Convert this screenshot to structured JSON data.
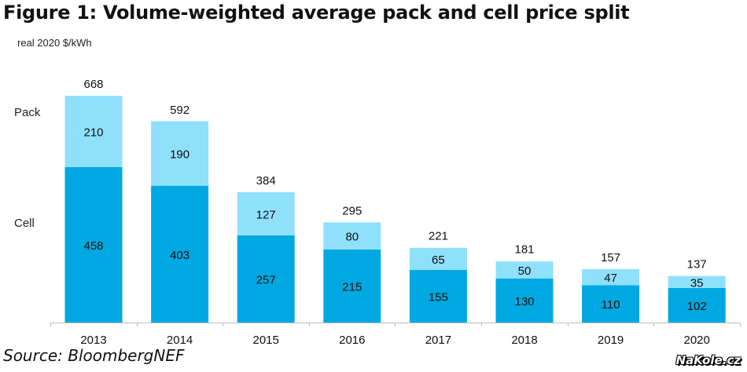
{
  "chart_data": {
    "type": "bar",
    "stacked": true,
    "title": "Figure 1: Volume-weighted average pack and cell price split",
    "ylabel": "real 2020 $/kWh",
    "xlabel": "",
    "categories": [
      "2013",
      "2014",
      "2015",
      "2016",
      "2017",
      "2018",
      "2019",
      "2020"
    ],
    "series": [
      {
        "name": "Cell",
        "color": "#00a8e1",
        "values": [
          458,
          403,
          257,
          215,
          155,
          130,
          110,
          102
        ]
      },
      {
        "name": "Pack",
        "color": "#8fe0fb",
        "values": [
          210,
          190,
          127,
          80,
          65,
          50,
          47,
          35
        ]
      }
    ],
    "totals": [
      668,
      592,
      384,
      295,
      221,
      181,
      157,
      137
    ],
    "ylim": [
      0,
      668
    ],
    "grid": false,
    "legend": "left (inline labels)",
    "source": "Source: BloombergNEF"
  },
  "watermark": "NaKole.cz"
}
